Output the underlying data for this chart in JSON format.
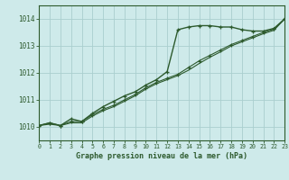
{
  "title": "Graphe pression niveau de la mer (hPa)",
  "bg_color": "#ceeaea",
  "grid_color": "#aacece",
  "line_color": "#2d5a2d",
  "x_min": 0,
  "x_max": 23,
  "y_min": 1009.5,
  "y_max": 1014.5,
  "y_ticks": [
    1010,
    1011,
    1012,
    1013,
    1014
  ],
  "x_ticks": [
    0,
    1,
    2,
    3,
    4,
    5,
    6,
    7,
    8,
    9,
    10,
    11,
    12,
    13,
    14,
    15,
    16,
    17,
    18,
    19,
    20,
    21,
    22,
    23
  ],
  "series": [
    {
      "x": [
        0,
        1,
        2,
        3,
        4,
        5,
        6,
        7,
        8,
        9,
        10,
        11,
        12,
        13,
        14,
        15,
        16,
        17,
        18,
        19,
        20,
        21,
        22,
        23
      ],
      "y": [
        1010.05,
        1010.15,
        1010.05,
        1010.3,
        1010.2,
        1010.5,
        1010.75,
        1010.95,
        1011.15,
        1011.3,
        1011.55,
        1011.75,
        1012.05,
        1013.6,
        1013.7,
        1013.75,
        1013.75,
        1013.7,
        1013.7,
        1013.6,
        1013.55,
        1013.55,
        1013.65,
        1014.0
      ],
      "marker": true,
      "linewidth": 1.0
    },
    {
      "x": [
        0,
        1,
        2,
        3,
        4,
        5,
        6,
        7,
        8,
        9,
        10,
        11,
        12,
        13,
        14,
        15,
        16,
        17,
        18,
        19,
        20,
        21,
        22,
        23
      ],
      "y": [
        1010.05,
        1010.15,
        1010.05,
        1010.2,
        1010.2,
        1010.45,
        1010.65,
        1010.8,
        1011.0,
        1011.2,
        1011.45,
        1011.65,
        1011.8,
        1011.95,
        1012.2,
        1012.45,
        1012.65,
        1012.85,
        1013.05,
        1013.2,
        1013.35,
        1013.5,
        1013.62,
        1014.0
      ],
      "marker": true,
      "linewidth": 0.8
    },
    {
      "x": [
        0,
        1,
        2,
        3,
        4,
        5,
        6,
        7,
        8,
        9,
        10,
        11,
        12,
        13,
        14,
        15,
        16,
        17,
        18,
        19,
        20,
        21,
        22,
        23
      ],
      "y": [
        1010.05,
        1010.1,
        1010.05,
        1010.15,
        1010.15,
        1010.4,
        1010.6,
        1010.75,
        1010.95,
        1011.15,
        1011.4,
        1011.6,
        1011.75,
        1011.9,
        1012.1,
        1012.35,
        1012.58,
        1012.78,
        1013.0,
        1013.15,
        1013.3,
        1013.45,
        1013.58,
        1014.0
      ],
      "marker": false,
      "linewidth": 0.8
    }
  ]
}
